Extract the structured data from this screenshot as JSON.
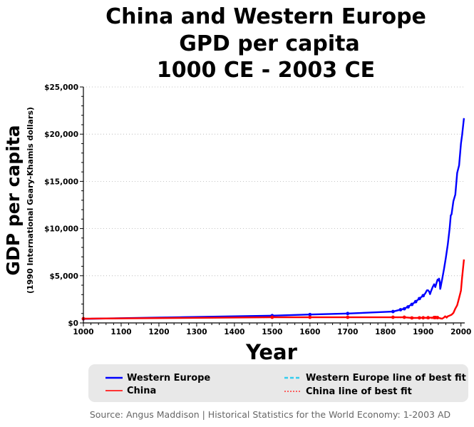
{
  "chart_data": {
    "type": "line",
    "title_lines": [
      "China and Western Europe",
      "GPD per capita",
      "1000 CE - 2003 CE"
    ],
    "xlabel": "Year",
    "ylabel": "GDP per capita",
    "ylabel_sub": "(1990 International Geary-Khamis dollars)",
    "xlim": [
      1000,
      2010
    ],
    "ylim": [
      0,
      25000
    ],
    "x_ticks": [
      1000,
      1100,
      1200,
      1300,
      1400,
      1500,
      1600,
      1700,
      1800,
      1900,
      2000
    ],
    "x_tick_labels": [
      "1000",
      "1100",
      "1200",
      "1300",
      "1400",
      "1500",
      "1600",
      "1700",
      "1800",
      "1900",
      "2000"
    ],
    "y_ticks": [
      0,
      5000,
      10000,
      15000,
      20000,
      25000
    ],
    "y_tick_labels": [
      "$0",
      "$5,000",
      "$10,000",
      "$15,000",
      "$20,000",
      "$25,000"
    ],
    "grid": true,
    "legend_position": "bottom",
    "source": "Source: Angus Maddison | Historical Statistics for the World Economy:  1-2003 AD",
    "series": [
      {
        "name": "Western Europe",
        "color": "#0000ff",
        "style": "solid",
        "points": [
          [
            1000,
            427
          ],
          [
            1500,
            771
          ],
          [
            1600,
            889
          ],
          [
            1700,
            997
          ],
          [
            1820,
            1202
          ],
          [
            1850,
            1500
          ],
          [
            1870,
            1960
          ],
          [
            1880,
            2250
          ],
          [
            1890,
            2580
          ],
          [
            1900,
            2890
          ],
          [
            1905,
            3100
          ],
          [
            1910,
            3460
          ],
          [
            1913,
            3460
          ],
          [
            1916,
            3300
          ],
          [
            1918,
            3050
          ],
          [
            1920,
            3280
          ],
          [
            1925,
            3800
          ],
          [
            1929,
            4100
          ],
          [
            1932,
            3800
          ],
          [
            1935,
            4200
          ],
          [
            1938,
            4600
          ],
          [
            1940,
            4500
          ],
          [
            1942,
            4700
          ],
          [
            1944,
            4300
          ],
          [
            1945,
            3600
          ],
          [
            1946,
            3750
          ],
          [
            1948,
            4200
          ],
          [
            1950,
            4580
          ],
          [
            1955,
            5700
          ],
          [
            1960,
            6900
          ],
          [
            1965,
            8300
          ],
          [
            1970,
            10000
          ],
          [
            1973,
            11400
          ],
          [
            1975,
            11500
          ],
          [
            1980,
            12900
          ],
          [
            1985,
            13600
          ],
          [
            1990,
            15900
          ],
          [
            1995,
            16700
          ],
          [
            2000,
            19000
          ],
          [
            2003,
            19900
          ],
          [
            2008,
            21700
          ]
        ]
      },
      {
        "name": "China",
        "color": "#ff0000",
        "style": "solid",
        "points": [
          [
            1000,
            450
          ],
          [
            1500,
            600
          ],
          [
            1600,
            600
          ],
          [
            1700,
            600
          ],
          [
            1820,
            600
          ],
          [
            1850,
            600
          ],
          [
            1870,
            530
          ],
          [
            1890,
            540
          ],
          [
            1913,
            552
          ],
          [
            1930,
            570
          ],
          [
            1938,
            560
          ],
          [
            1950,
            448
          ],
          [
            1955,
            575
          ],
          [
            1958,
            700
          ],
          [
            1960,
            660
          ],
          [
            1962,
            560
          ],
          [
            1965,
            700
          ],
          [
            1970,
            780
          ],
          [
            1975,
            870
          ],
          [
            1980,
            1060
          ],
          [
            1985,
            1520
          ],
          [
            1990,
            1870
          ],
          [
            1995,
            2650
          ],
          [
            2000,
            3420
          ],
          [
            2003,
            4800
          ],
          [
            2008,
            6725
          ]
        ]
      },
      {
        "name": "Western Europe line of best fit",
        "color": "#6a9fe6",
        "style": "dashed",
        "points": [
          [
            1000,
            427
          ],
          [
            1500,
            771
          ],
          [
            1600,
            889
          ],
          [
            1700,
            997
          ],
          [
            1820,
            1202
          ]
        ]
      },
      {
        "name": "China line of best fit",
        "color": "#ff3333",
        "style": "dotted",
        "points": [
          [
            1000,
            450
          ],
          [
            1500,
            600
          ],
          [
            1600,
            600
          ],
          [
            1700,
            600
          ],
          [
            1820,
            600
          ],
          [
            1950,
            448
          ]
        ]
      }
    ],
    "markers": [
      {
        "series": "Western Europe",
        "color": "#0000ff",
        "points": [
          [
            1000,
            427
          ],
          [
            1500,
            771
          ],
          [
            1600,
            889
          ],
          [
            1700,
            997
          ],
          [
            1820,
            1202
          ],
          [
            1840,
            1400
          ],
          [
            1850,
            1500
          ],
          [
            1860,
            1700
          ],
          [
            1870,
            1960
          ],
          [
            1880,
            2250
          ],
          [
            1890,
            2580
          ],
          [
            1900,
            2890
          ]
        ]
      },
      {
        "series": "China",
        "color": "#ff0000",
        "points": [
          [
            1000,
            450
          ],
          [
            1500,
            600
          ],
          [
            1600,
            600
          ],
          [
            1700,
            600
          ],
          [
            1820,
            600
          ],
          [
            1850,
            600
          ],
          [
            1870,
            530
          ],
          [
            1890,
            540
          ],
          [
            1900,
            545
          ],
          [
            1913,
            552
          ],
          [
            1929,
            570
          ],
          [
            1933,
            575
          ],
          [
            1938,
            560
          ]
        ]
      }
    ]
  },
  "legend": {
    "items": [
      {
        "label": "Western Europe",
        "color": "#0000ff",
        "style": "solid"
      },
      {
        "label": "China",
        "color": "#ff3333",
        "style": "solid"
      },
      {
        "label": "Western Europe line of best fit",
        "color": "#33ccee",
        "style": "dashed"
      },
      {
        "label": "China line of best fit",
        "color": "#ff3333",
        "style": "dotted"
      }
    ]
  }
}
